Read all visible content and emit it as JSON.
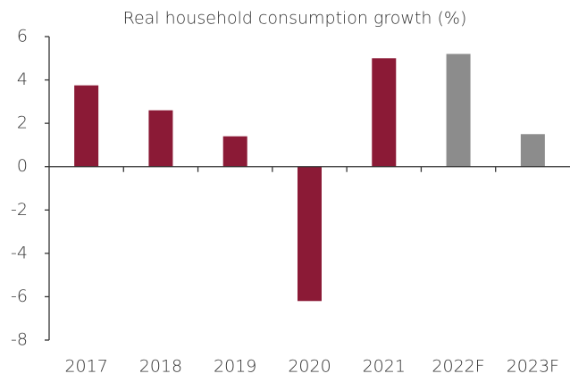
{
  "chart_data": {
    "type": "bar",
    "title": "Real household consumption growth (%)",
    "categories": [
      "2017",
      "2018",
      "2019",
      "2020",
      "2021",
      "2022F",
      "2023F"
    ],
    "values": [
      3.75,
      2.6,
      1.4,
      -6.2,
      5.0,
      5.2,
      1.5
    ],
    "colors": [
      "#8b1a36",
      "#8b1a36",
      "#8b1a36",
      "#8b1a36",
      "#8b1a36",
      "#8c8c8c",
      "#8c8c8c"
    ],
    "ylim": [
      -8,
      6
    ],
    "yticks": [
      6,
      4,
      2,
      0,
      -2,
      -4,
      -6,
      -8
    ],
    "grid": false
  }
}
